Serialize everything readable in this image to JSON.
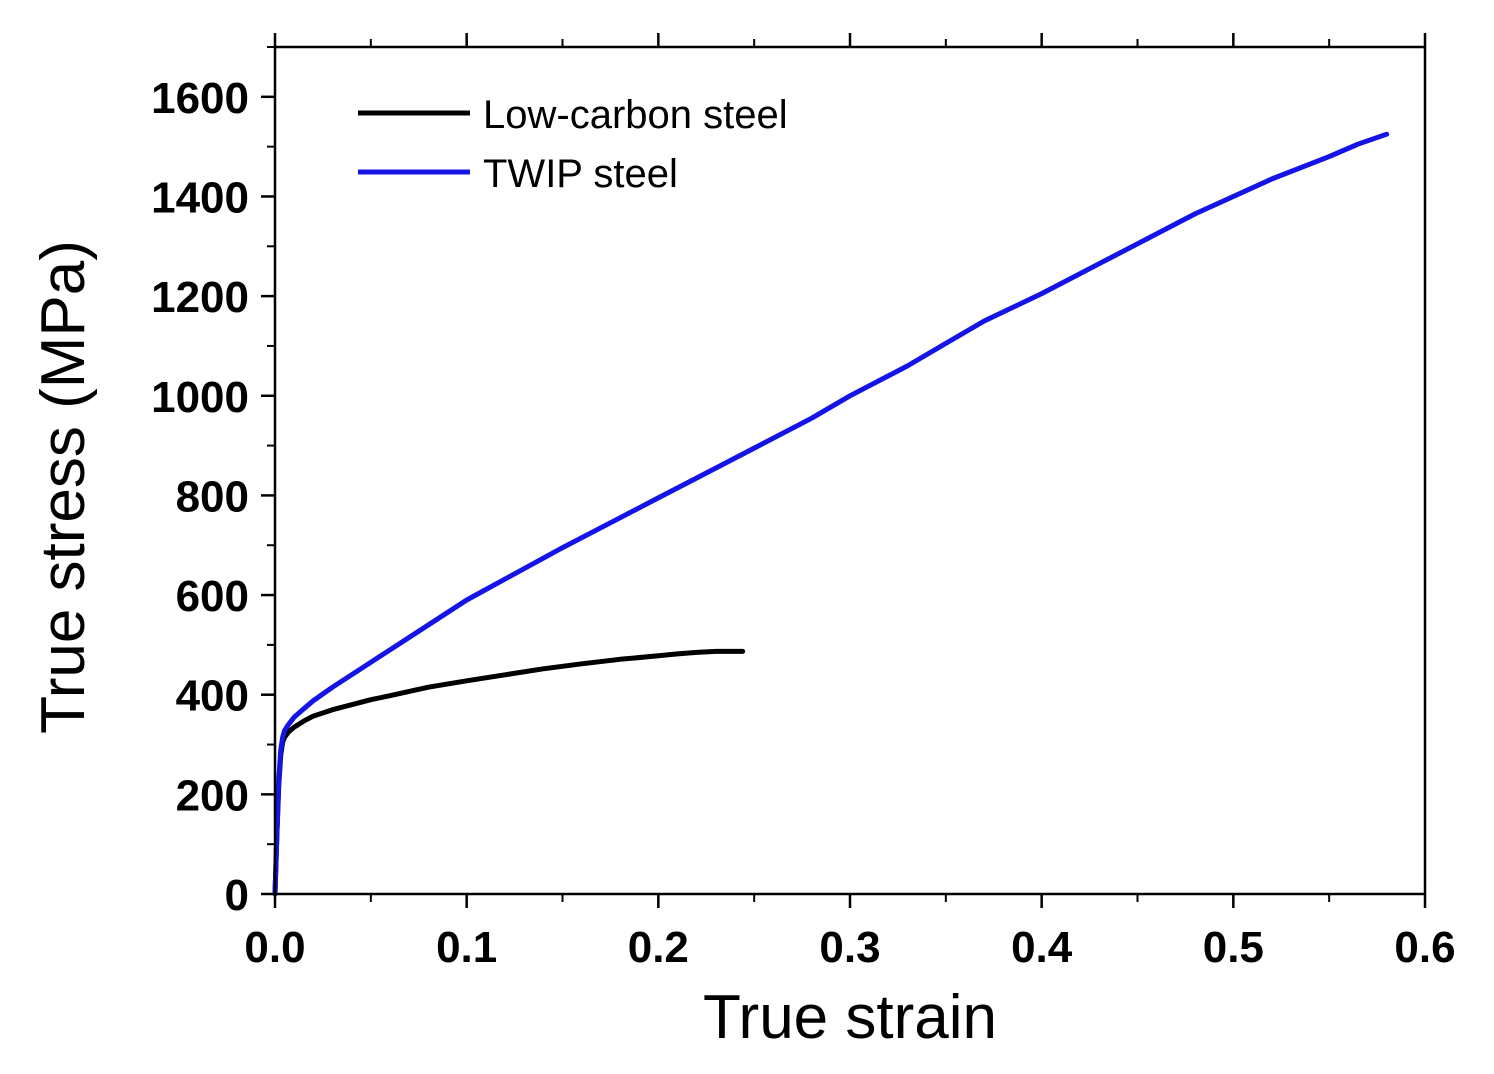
{
  "chart_data": {
    "type": "line",
    "title": "",
    "xlabel": "True strain",
    "ylabel": "True stress (MPa)",
    "xlim": [
      0.0,
      0.6
    ],
    "ylim": [
      0,
      1700
    ],
    "xticks": [
      0.0,
      0.1,
      0.2,
      0.3,
      0.4,
      0.5,
      0.6
    ],
    "xtick_labels": [
      "0.0",
      "0.1",
      "0.2",
      "0.3",
      "0.4",
      "0.5",
      "0.6"
    ],
    "yticks": [
      0,
      200,
      400,
      600,
      800,
      1000,
      1200,
      1400,
      1600
    ],
    "ytick_labels": [
      "0",
      "200",
      "400",
      "600",
      "800",
      "1000",
      "1200",
      "1400",
      "1600"
    ],
    "grid": false,
    "legend_position": "top-left",
    "series": [
      {
        "name": "Low-carbon steel",
        "color": "#000000",
        "x": [
          0.0,
          0.001,
          0.002,
          0.003,
          0.004,
          0.005,
          0.007,
          0.01,
          0.015,
          0.02,
          0.03,
          0.04,
          0.05,
          0.06,
          0.08,
          0.1,
          0.12,
          0.14,
          0.16,
          0.18,
          0.2,
          0.21,
          0.22,
          0.23,
          0.244
        ],
        "y": [
          0,
          120,
          220,
          280,
          305,
          315,
          325,
          335,
          347,
          357,
          370,
          380,
          390,
          398,
          415,
          428,
          440,
          452,
          462,
          471,
          478,
          482,
          485,
          487,
          487
        ]
      },
      {
        "name": "TWIP steel",
        "color": "#1414e6",
        "x": [
          0.0,
          0.001,
          0.002,
          0.003,
          0.004,
          0.005,
          0.007,
          0.01,
          0.015,
          0.02,
          0.03,
          0.05,
          0.07,
          0.09,
          0.1,
          0.12,
          0.15,
          0.18,
          0.2,
          0.22,
          0.25,
          0.28,
          0.3,
          0.33,
          0.35,
          0.37,
          0.4,
          0.43,
          0.45,
          0.48,
          0.5,
          0.52,
          0.55,
          0.565,
          0.58
        ],
        "y": [
          0,
          120,
          230,
          290,
          315,
          328,
          340,
          355,
          372,
          388,
          415,
          465,
          515,
          565,
          590,
          632,
          695,
          755,
          795,
          835,
          895,
          955,
          1000,
          1060,
          1105,
          1150,
          1205,
          1265,
          1305,
          1365,
          1400,
          1435,
          1480,
          1505,
          1525
        ]
      }
    ]
  }
}
